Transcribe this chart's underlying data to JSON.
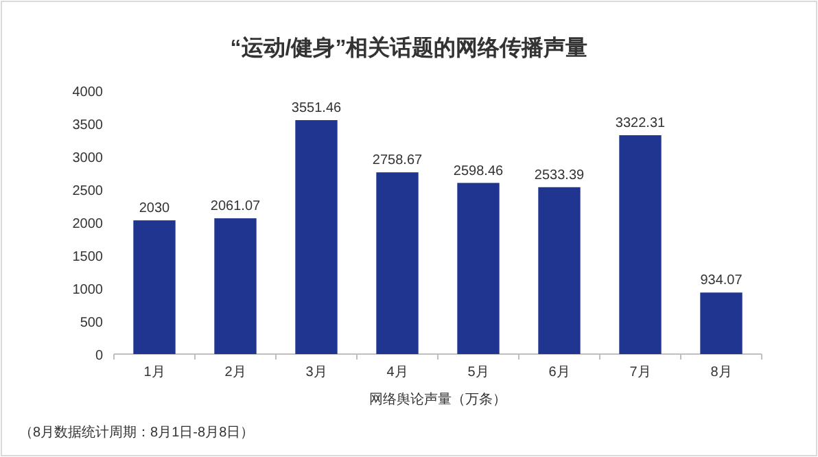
{
  "chart_data": {
    "type": "bar",
    "title": "“运动/健身”相关话题的网络传播声量",
    "xlabel": "网络舆论声量（万条）",
    "annotations": [
      "（8月数据统计周期：8月1日-8月8日）"
    ],
    "categories": [
      "1月",
      "2月",
      "3月",
      "4月",
      "5月",
      "6月",
      "7月",
      "8月"
    ],
    "values": [
      2030,
      2061.07,
      3551.46,
      2758.67,
      2598.46,
      2533.39,
      3322.31,
      934.07
    ],
    "color": "#1f3590",
    "ylim": [
      0,
      4000
    ],
    "yticks": [
      0,
      500,
      1000,
      1500,
      2000,
      2500,
      3000,
      3500,
      4000
    ],
    "data_labels": true
  }
}
